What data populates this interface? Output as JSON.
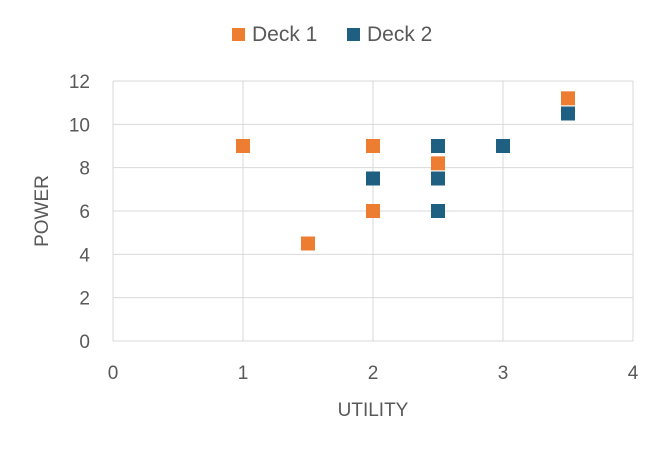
{
  "chart_data": {
    "type": "scatter",
    "title": "",
    "xlabel": "UTILITY",
    "ylabel": "POWER",
    "xlim": [
      0,
      4
    ],
    "ylim": [
      0,
      12
    ],
    "x_ticks": [
      0,
      1,
      2,
      3,
      4
    ],
    "y_ticks": [
      0,
      2,
      4,
      6,
      8,
      10,
      12
    ],
    "grid": true,
    "legend_position": "top",
    "series": [
      {
        "name": "Deck 1",
        "color": "#ed7d31",
        "marker": "square",
        "points": [
          {
            "x": 1,
            "y": 9
          },
          {
            "x": 1.5,
            "y": 4.5
          },
          {
            "x": 2,
            "y": 9
          },
          {
            "x": 2,
            "y": 6
          },
          {
            "x": 2.5,
            "y": 8.2
          },
          {
            "x": 3.5,
            "y": 11.2
          }
        ]
      },
      {
        "name": "Deck 2",
        "color": "#1f5f82",
        "marker": "square",
        "points": [
          {
            "x": 2,
            "y": 7.5
          },
          {
            "x": 2.5,
            "y": 9
          },
          {
            "x": 2.5,
            "y": 7.5
          },
          {
            "x": 2.5,
            "y": 6
          },
          {
            "x": 3,
            "y": 9
          },
          {
            "x": 3.5,
            "y": 10.5
          }
        ]
      }
    ]
  }
}
